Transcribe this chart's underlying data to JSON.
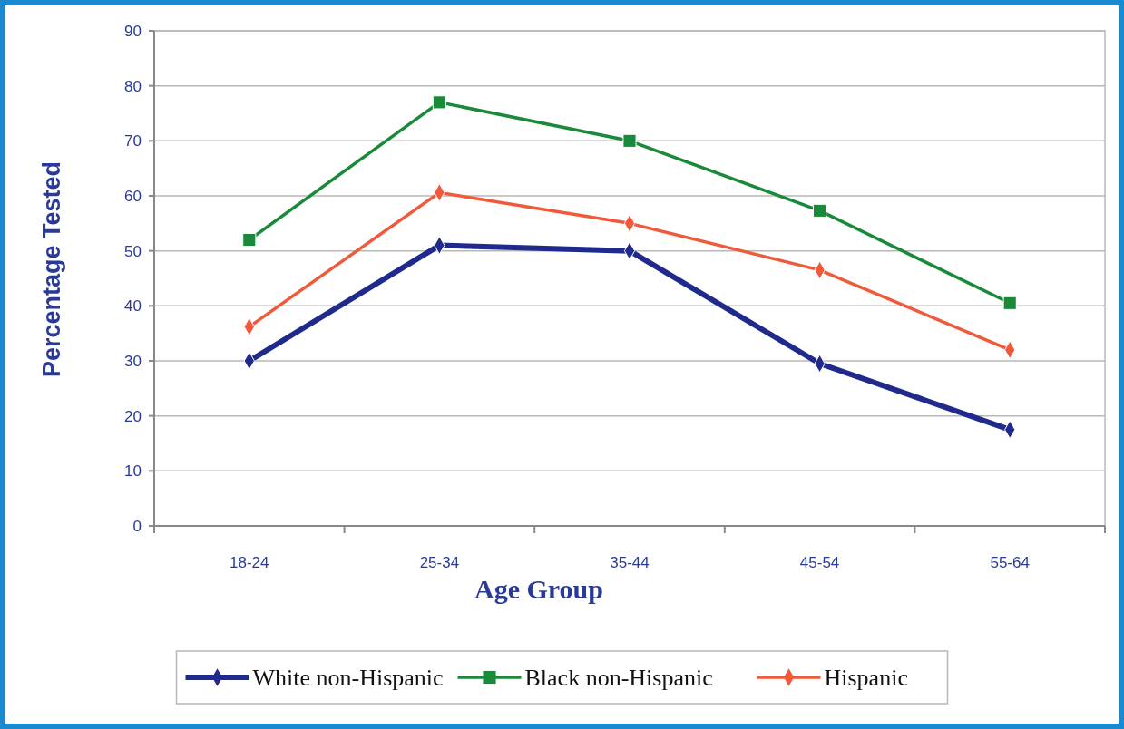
{
  "chart_data": {
    "type": "line",
    "xlabel": "Age Group",
    "ylabel": "Percentage Tested",
    "categories": [
      "18-24",
      "25-34",
      "35-44",
      "45-54",
      "55-64"
    ],
    "series": [
      {
        "name": "White non-Hispanic",
        "color": "#1f2a8c",
        "values": [
          30,
          51,
          50,
          29.5,
          17.5
        ],
        "marker": "diamond"
      },
      {
        "name": "Black non-Hispanic",
        "color": "#1a8a3a",
        "values": [
          52,
          77,
          70,
          57.3,
          40.5
        ],
        "marker": "square"
      },
      {
        "name": "Hispanic",
        "color": "#f05a3a",
        "values": [
          36.2,
          60.6,
          55,
          46.5,
          32
        ],
        "marker": "diamond"
      }
    ],
    "ylim": [
      0,
      90
    ],
    "yticks": [
      0,
      10,
      20,
      30,
      40,
      50,
      60,
      70,
      80,
      90
    ],
    "grid": "y",
    "legend": "bottom",
    "line_style": "solid"
  }
}
